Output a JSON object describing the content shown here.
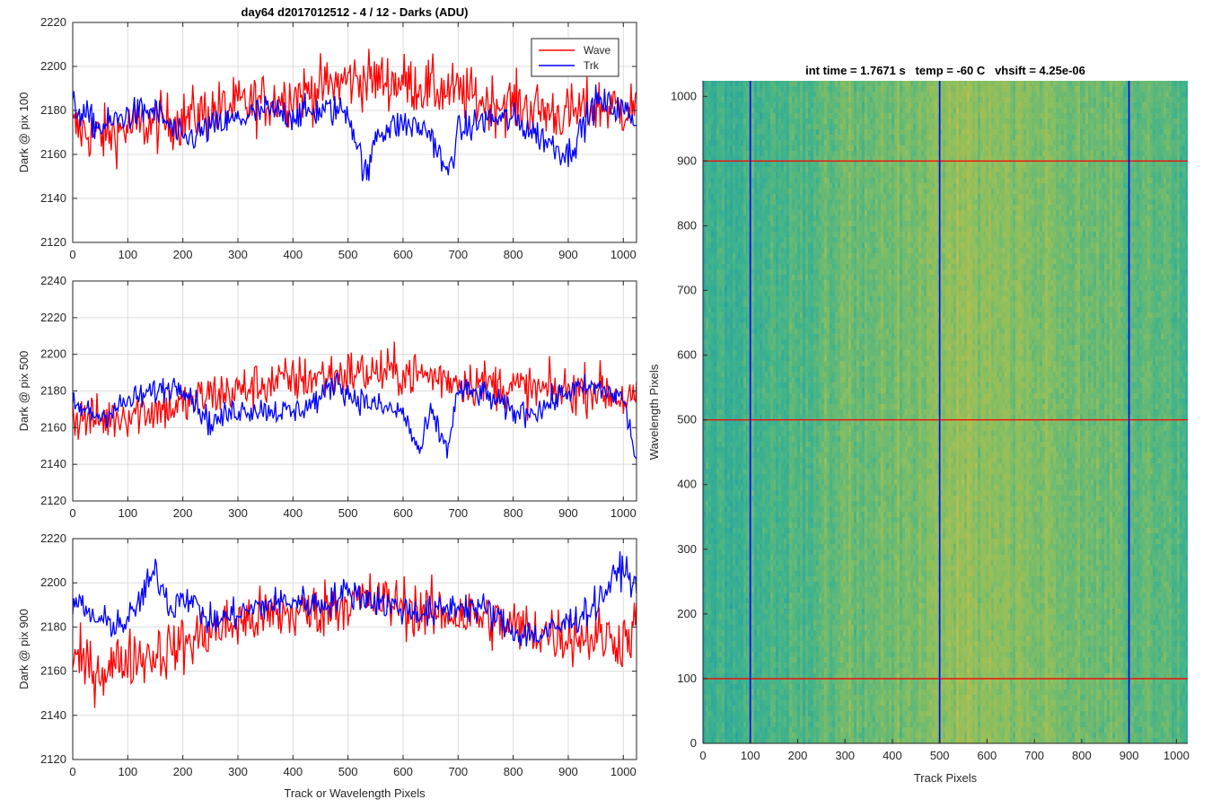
{
  "chart_data": [
    {
      "type": "line",
      "title": "day64 d2017012512 - 4 / 12 - Darks (ADU)",
      "ylabel": "Dark @ pix 100",
      "xlabel": "",
      "xlim": [
        0,
        1024
      ],
      "ylim": [
        2120,
        2220
      ],
      "xticks": [
        0,
        100,
        200,
        300,
        400,
        500,
        600,
        700,
        800,
        900,
        1000
      ],
      "yticks": [
        2120,
        2140,
        2160,
        2180,
        2200,
        2220
      ],
      "grid": true,
      "legend": {
        "placement": "top-right",
        "entries": [
          "Wave",
          "Trk"
        ]
      },
      "series": [
        {
          "name": "Wave",
          "color": "#ff0000",
          "x": [
            0,
            50,
            100,
            150,
            200,
            250,
            300,
            350,
            400,
            450,
            500,
            550,
            600,
            650,
            700,
            750,
            800,
            850,
            900,
            950,
            1000,
            1024
          ],
          "y": [
            2172,
            2168,
            2172,
            2174,
            2176,
            2180,
            2182,
            2184,
            2187,
            2190,
            2194,
            2194,
            2193,
            2190,
            2188,
            2184,
            2183,
            2180,
            2178,
            2182,
            2181,
            2182
          ]
        },
        {
          "name": "Trk",
          "color": "#0000ff",
          "x": [
            0,
            50,
            100,
            150,
            200,
            250,
            300,
            350,
            400,
            450,
            500,
            535,
            550,
            600,
            630,
            650,
            680,
            700,
            750,
            800,
            850,
            900,
            950,
            1000,
            1024
          ],
          "y": [
            2182,
            2172,
            2178,
            2180,
            2166,
            2172,
            2176,
            2180,
            2178,
            2180,
            2180,
            2148,
            2170,
            2174,
            2172,
            2170,
            2150,
            2170,
            2176,
            2176,
            2168,
            2160,
            2184,
            2180,
            2176
          ]
        }
      ]
    },
    {
      "type": "line",
      "ylabel": "Dark @ pix 500",
      "xlabel": "",
      "xlim": [
        0,
        1024
      ],
      "ylim": [
        2120,
        2240
      ],
      "xticks": [
        0,
        100,
        200,
        300,
        400,
        500,
        600,
        700,
        800,
        900,
        1000
      ],
      "yticks": [
        2120,
        2140,
        2160,
        2180,
        2200,
        2220,
        2240
      ],
      "grid": true,
      "series": [
        {
          "name": "Wave",
          "color": "#ff0000",
          "x": [
            0,
            50,
            100,
            150,
            200,
            250,
            300,
            350,
            400,
            450,
            500,
            550,
            600,
            650,
            700,
            750,
            800,
            850,
            900,
            950,
            1000,
            1024
          ],
          "y": [
            2166,
            2164,
            2168,
            2170,
            2172,
            2178,
            2180,
            2184,
            2186,
            2188,
            2190,
            2190,
            2190,
            2188,
            2186,
            2184,
            2182,
            2180,
            2180,
            2182,
            2176,
            2174
          ]
        },
        {
          "name": "Trk",
          "color": "#0000ff",
          "x": [
            0,
            50,
            100,
            150,
            200,
            250,
            300,
            350,
            400,
            450,
            480,
            500,
            550,
            600,
            630,
            650,
            680,
            700,
            750,
            800,
            850,
            900,
            950,
            1000,
            1024
          ],
          "y": [
            2172,
            2166,
            2174,
            2180,
            2184,
            2162,
            2170,
            2170,
            2168,
            2176,
            2186,
            2178,
            2172,
            2168,
            2146,
            2168,
            2148,
            2180,
            2178,
            2168,
            2170,
            2180,
            2182,
            2176,
            2142
          ]
        }
      ]
    },
    {
      "type": "line",
      "ylabel": "Dark @ pix 900",
      "xlabel": "Track or Wavelength Pixels",
      "xlim": [
        0,
        1024
      ],
      "ylim": [
        2120,
        2220
      ],
      "xticks": [
        0,
        100,
        200,
        300,
        400,
        500,
        600,
        700,
        800,
        900,
        1000
      ],
      "yticks": [
        2120,
        2140,
        2160,
        2180,
        2200,
        2220
      ],
      "grid": true,
      "series": [
        {
          "name": "Wave",
          "color": "#ff0000",
          "x": [
            0,
            50,
            100,
            150,
            200,
            250,
            300,
            350,
            400,
            450,
            500,
            550,
            600,
            650,
            700,
            750,
            800,
            850,
            900,
            950,
            1000,
            1024
          ],
          "y": [
            2165,
            2160,
            2166,
            2168,
            2172,
            2178,
            2182,
            2185,
            2186,
            2188,
            2192,
            2192,
            2190,
            2186,
            2186,
            2184,
            2180,
            2178,
            2176,
            2176,
            2174,
            2180
          ]
        },
        {
          "name": "Trk",
          "color": "#0000ff",
          "x": [
            0,
            50,
            100,
            150,
            180,
            200,
            250,
            300,
            350,
            400,
            450,
            500,
            550,
            600,
            650,
            700,
            750,
            800,
            850,
            900,
            950,
            1000,
            1024
          ],
          "y": [
            2192,
            2182,
            2182,
            2205,
            2188,
            2196,
            2182,
            2186,
            2190,
            2192,
            2190,
            2196,
            2192,
            2188,
            2186,
            2190,
            2188,
            2178,
            2176,
            2182,
            2190,
            2208,
            2196
          ]
        }
      ]
    },
    {
      "type": "heatmap",
      "title": "int time = 1.7671 s   temp = -60 C   vhsift = 4.25e-06",
      "xlabel": "Track Pixels",
      "ylabel": "Wavelength Pixels",
      "xlim": [
        0,
        1024
      ],
      "ylim": [
        0,
        1024
      ],
      "xticks": [
        0,
        100,
        200,
        300,
        400,
        500,
        600,
        700,
        800,
        900,
        1000
      ],
      "yticks": [
        0,
        100,
        200,
        300,
        400,
        500,
        600,
        700,
        800,
        900,
        1000
      ],
      "grid": false,
      "colormap": [
        "#1e9cb0",
        "#3fb38c",
        "#8cbf5f",
        "#c7bd45"
      ],
      "column_profile": {
        "x": [
          0,
          50,
          100,
          150,
          200,
          250,
          300,
          350,
          400,
          450,
          500,
          550,
          600,
          650,
          700,
          750,
          800,
          850,
          900,
          950,
          1000,
          1024
        ],
        "level": [
          0.3,
          0.3,
          0.36,
          0.4,
          0.4,
          0.48,
          0.52,
          0.54,
          0.56,
          0.6,
          0.68,
          0.72,
          0.7,
          0.66,
          0.62,
          0.58,
          0.56,
          0.52,
          0.5,
          0.46,
          0.4,
          0.38
        ]
      },
      "vertical_markers": {
        "color": "#0000ff",
        "x": [
          100,
          500,
          900
        ]
      },
      "horizontal_markers": {
        "color": "#ff0000",
        "y": [
          100,
          500,
          900
        ]
      }
    }
  ]
}
